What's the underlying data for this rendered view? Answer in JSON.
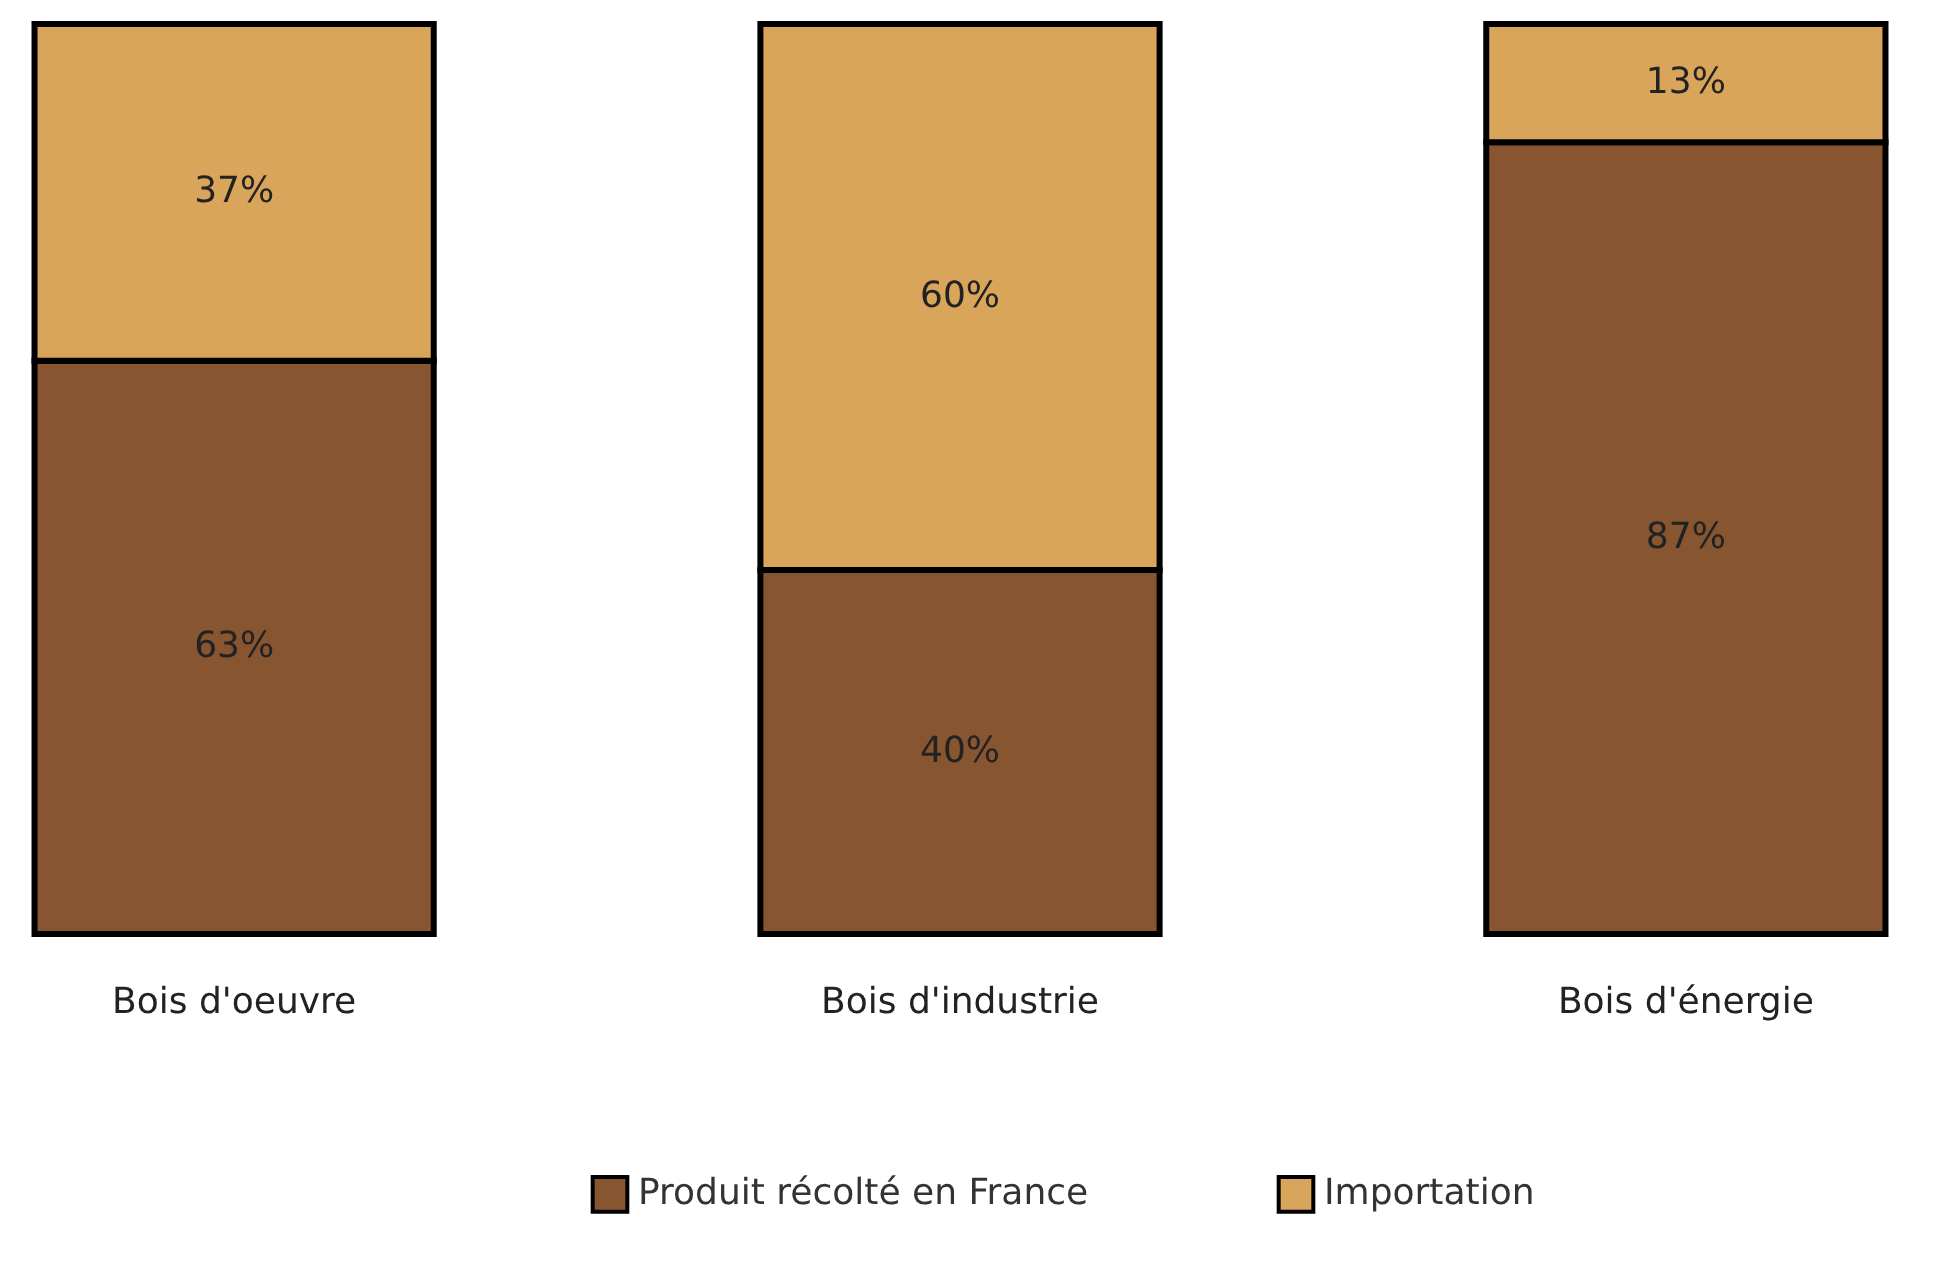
{
  "chart_data": {
    "type": "bar",
    "stacked": true,
    "categories": [
      "Bois d'oeuvre",
      "Bois d'industrie",
      "Bois d'énergie"
    ],
    "series": [
      {
        "name": "Produit récolté en France",
        "color": "#87552f",
        "values": [
          63,
          40,
          87
        ],
        "value_labels": [
          "63%",
          "40%",
          "87%"
        ]
      },
      {
        "name": "Importation",
        "color": "#d9a55a",
        "values": [
          37,
          60,
          13
        ],
        "value_labels": [
          "37%",
          "60%",
          "13%"
        ]
      }
    ],
    "legend": "bottom"
  }
}
